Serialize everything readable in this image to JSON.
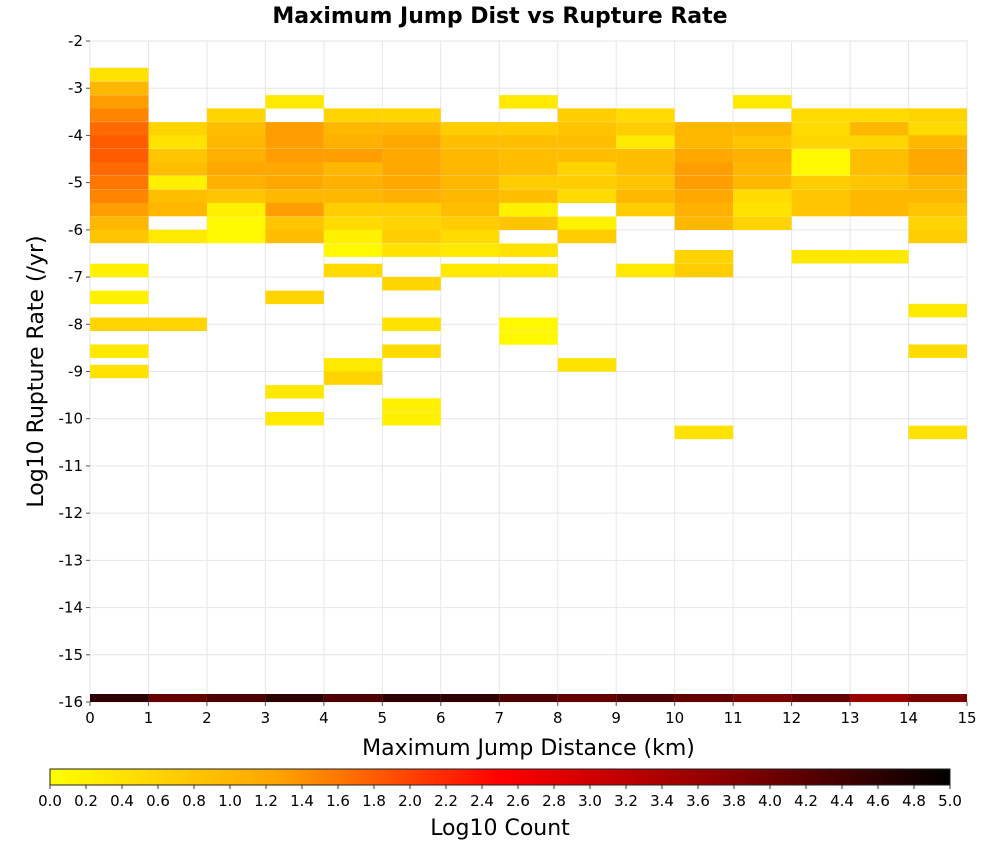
{
  "chart_data": {
    "type": "heatmap",
    "title": "Maximum Jump Dist vs Rupture Rate",
    "xlabel": "Maximum Jump Distance (km)",
    "ylabel": "Log10 Rupture Rate (/yr)",
    "xlim": [
      0,
      15
    ],
    "ylim": [
      -16,
      -2
    ],
    "x_ticks": [
      0,
      1,
      2,
      3,
      4,
      5,
      6,
      7,
      8,
      9,
      10,
      11,
      12,
      13,
      14,
      15
    ],
    "y_ticks": [
      -2,
      -3,
      -4,
      -5,
      -6,
      -7,
      -8,
      -9,
      -10,
      -11,
      -12,
      -13,
      -14,
      -15,
      -16
    ],
    "grid": true,
    "x_bin_width": 1,
    "y_bin_height": 0.2857,
    "colorbar": {
      "label": "Log10 Count",
      "range": [
        0,
        5
      ],
      "ticks": [
        "0.0",
        "0.2",
        "0.4",
        "0.6",
        "0.8",
        "1.0",
        "1.2",
        "1.4",
        "1.6",
        "1.8",
        "2.0",
        "2.2",
        "2.4",
        "2.6",
        "2.8",
        "3.0",
        "3.2",
        "3.4",
        "3.6",
        "3.8",
        "4.0",
        "4.2",
        "4.4",
        "4.6",
        "4.8",
        "5.0"
      ],
      "colors": [
        "#ffff00",
        "#ffa500",
        "#ff0000",
        "#8b0000",
        "#000000"
      ]
    },
    "cells": [
      [
        0,
        -2.71,
        0.4
      ],
      [
        0,
        -3.0,
        1.0
      ],
      [
        0,
        -3.29,
        1.3
      ],
      [
        0,
        -3.57,
        1.5
      ],
      [
        0,
        -3.86,
        1.7
      ],
      [
        0,
        -4.14,
        1.8
      ],
      [
        0,
        -4.43,
        1.8
      ],
      [
        0,
        -4.71,
        1.7
      ],
      [
        0,
        -5.0,
        1.6
      ],
      [
        0,
        -5.29,
        1.5
      ],
      [
        0,
        -5.57,
        1.3
      ],
      [
        0,
        -5.86,
        1.0
      ],
      [
        0,
        -6.14,
        0.8
      ],
      [
        0,
        -6.86,
        0.2
      ],
      [
        0,
        -7.43,
        0.2
      ],
      [
        0,
        -8.0,
        0.6
      ],
      [
        0,
        -8.57,
        0.3
      ],
      [
        0,
        -9.0,
        0.4
      ],
      [
        1,
        -3.86,
        0.6
      ],
      [
        1,
        -4.14,
        0.4
      ],
      [
        1,
        -4.43,
        0.8
      ],
      [
        1,
        -4.71,
        0.9
      ],
      [
        1,
        -5.0,
        0.2
      ],
      [
        1,
        -5.29,
        0.9
      ],
      [
        1,
        -5.57,
        1.0
      ],
      [
        1,
        -6.14,
        0.3
      ],
      [
        1,
        -8.0,
        0.6
      ],
      [
        2,
        -3.57,
        0.6
      ],
      [
        2,
        -3.86,
        0.9
      ],
      [
        2,
        -4.14,
        1.0
      ],
      [
        2,
        -4.43,
        1.1
      ],
      [
        2,
        -4.71,
        1.2
      ],
      [
        2,
        -5.0,
        1.1
      ],
      [
        2,
        -5.29,
        0.8
      ],
      [
        2,
        -5.57,
        0.2
      ],
      [
        2,
        -5.86,
        0.1
      ],
      [
        2,
        -6.14,
        0.1
      ],
      [
        3,
        -3.29,
        0.3
      ],
      [
        3,
        -3.86,
        1.3
      ],
      [
        3,
        -4.14,
        1.3
      ],
      [
        3,
        -4.43,
        1.3
      ],
      [
        3,
        -4.71,
        1.2
      ],
      [
        3,
        -5.0,
        1.2
      ],
      [
        3,
        -5.29,
        1.0
      ],
      [
        3,
        -5.57,
        1.3
      ],
      [
        3,
        -5.86,
        0.8
      ],
      [
        3,
        -6.14,
        0.9
      ],
      [
        3,
        -7.43,
        0.6
      ],
      [
        3,
        -9.43,
        0.3
      ],
      [
        3,
        -10.0,
        0.3
      ],
      [
        4,
        -3.57,
        0.6
      ],
      [
        4,
        -3.86,
        1.0
      ],
      [
        4,
        -4.14,
        1.1
      ],
      [
        4,
        -4.43,
        1.3
      ],
      [
        4,
        -4.71,
        1.0
      ],
      [
        4,
        -5.0,
        1.1
      ],
      [
        4,
        -5.29,
        1.0
      ],
      [
        4,
        -5.57,
        0.7
      ],
      [
        4,
        -5.86,
        0.5
      ],
      [
        4,
        -6.14,
        0.2
      ],
      [
        4,
        -6.43,
        0.1
      ],
      [
        4,
        -6.86,
        0.5
      ],
      [
        4,
        -8.86,
        0.3
      ],
      [
        4,
        -9.14,
        0.6
      ],
      [
        5,
        -3.57,
        0.6
      ],
      [
        5,
        -3.86,
        1.0
      ],
      [
        5,
        -4.14,
        1.2
      ],
      [
        5,
        -4.43,
        1.2
      ],
      [
        5,
        -4.71,
        1.2
      ],
      [
        5,
        -5.0,
        1.2
      ],
      [
        5,
        -5.29,
        1.1
      ],
      [
        5,
        -5.57,
        0.7
      ],
      [
        5,
        -5.86,
        0.6
      ],
      [
        5,
        -6.14,
        0.7
      ],
      [
        5,
        -6.43,
        0.4
      ],
      [
        5,
        -7.14,
        0.6
      ],
      [
        5,
        -8.0,
        0.4
      ],
      [
        5,
        -8.57,
        0.5
      ],
      [
        5,
        -9.71,
        0.2
      ],
      [
        5,
        -10.0,
        0.2
      ],
      [
        6,
        -3.86,
        0.7
      ],
      [
        6,
        -4.14,
        0.9
      ],
      [
        6,
        -4.43,
        1.0
      ],
      [
        6,
        -4.71,
        1.0
      ],
      [
        6,
        -5.0,
        1.0
      ],
      [
        6,
        -5.29,
        1.0
      ],
      [
        6,
        -5.57,
        0.9
      ],
      [
        6,
        -5.86,
        0.7
      ],
      [
        6,
        -6.14,
        0.5
      ],
      [
        6,
        -6.43,
        0.3
      ],
      [
        6,
        -6.86,
        0.3
      ],
      [
        7,
        -3.29,
        0.3
      ],
      [
        7,
        -3.86,
        0.7
      ],
      [
        7,
        -4.14,
        0.9
      ],
      [
        7,
        -4.43,
        0.9
      ],
      [
        7,
        -4.71,
        0.9
      ],
      [
        7,
        -5.0,
        0.7
      ],
      [
        7,
        -5.29,
        0.9
      ],
      [
        7,
        -5.57,
        0.2
      ],
      [
        7,
        -5.86,
        0.8
      ],
      [
        7,
        -6.43,
        0.4
      ],
      [
        7,
        -6.86,
        0.3
      ],
      [
        7,
        -8.0,
        0.1
      ],
      [
        7,
        -8.29,
        0.1
      ],
      [
        8,
        -3.57,
        0.7
      ],
      [
        8,
        -3.86,
        0.8
      ],
      [
        8,
        -4.14,
        0.9
      ],
      [
        8,
        -4.43,
        0.9
      ],
      [
        8,
        -4.71,
        0.6
      ],
      [
        8,
        -5.0,
        0.7
      ],
      [
        8,
        -5.29,
        0.5
      ],
      [
        8,
        -5.86,
        0.2
      ],
      [
        8,
        -6.14,
        0.7
      ],
      [
        8,
        -8.86,
        0.4
      ],
      [
        9,
        -3.57,
        0.5
      ],
      [
        9,
        -3.86,
        0.7
      ],
      [
        9,
        -4.14,
        0.3
      ],
      [
        9,
        -4.43,
        0.9
      ],
      [
        9,
        -4.71,
        0.9
      ],
      [
        9,
        -5.0,
        0.8
      ],
      [
        9,
        -5.29,
        1.0
      ],
      [
        9,
        -5.57,
        0.7
      ],
      [
        9,
        -6.86,
        0.3
      ],
      [
        10,
        -3.86,
        1.0
      ],
      [
        10,
        -4.14,
        1.0
      ],
      [
        10,
        -4.43,
        1.2
      ],
      [
        10,
        -4.71,
        1.3
      ],
      [
        10,
        -5.0,
        1.3
      ],
      [
        10,
        -5.29,
        1.2
      ],
      [
        10,
        -5.57,
        1.1
      ],
      [
        10,
        -5.86,
        1.0
      ],
      [
        10,
        -6.57,
        0.6
      ],
      [
        10,
        -6.86,
        0.7
      ],
      [
        10,
        -10.29,
        0.4
      ],
      [
        11,
        -3.29,
        0.3
      ],
      [
        11,
        -3.86,
        1.0
      ],
      [
        11,
        -4.14,
        0.8
      ],
      [
        11,
        -4.43,
        1.1
      ],
      [
        11,
        -4.71,
        1.0
      ],
      [
        11,
        -5.0,
        1.0
      ],
      [
        11,
        -5.29,
        0.5
      ],
      [
        11,
        -5.57,
        0.4
      ],
      [
        11,
        -5.86,
        0.6
      ],
      [
        12,
        -3.57,
        0.5
      ],
      [
        12,
        -3.86,
        0.5
      ],
      [
        12,
        -4.14,
        0.6
      ],
      [
        12,
        -4.43,
        0.1
      ],
      [
        12,
        -4.71,
        0.1
      ],
      [
        12,
        -5.0,
        0.7
      ],
      [
        12,
        -5.29,
        0.8
      ],
      [
        12,
        -5.57,
        0.8
      ],
      [
        12,
        -6.57,
        0.3
      ],
      [
        13,
        -3.57,
        0.5
      ],
      [
        13,
        -3.86,
        1.0
      ],
      [
        13,
        -4.14,
        0.6
      ],
      [
        13,
        -4.43,
        0.9
      ],
      [
        13,
        -4.71,
        0.9
      ],
      [
        13,
        -5.0,
        0.8
      ],
      [
        13,
        -5.29,
        1.0
      ],
      [
        13,
        -5.57,
        1.0
      ],
      [
        13,
        -6.57,
        0.3
      ],
      [
        14,
        -3.57,
        0.6
      ],
      [
        14,
        -3.86,
        0.5
      ],
      [
        14,
        -4.14,
        1.0
      ],
      [
        14,
        -4.43,
        1.2
      ],
      [
        14,
        -4.71,
        1.2
      ],
      [
        14,
        -5.0,
        1.0
      ],
      [
        14,
        -5.29,
        1.0
      ],
      [
        14,
        -5.57,
        0.8
      ],
      [
        14,
        -5.86,
        0.6
      ],
      [
        14,
        -6.14,
        0.7
      ],
      [
        14,
        -7.71,
        0.3
      ],
      [
        14,
        -8.57,
        0.5
      ],
      [
        14,
        -10.29,
        0.4
      ]
    ],
    "bottom_band": {
      "y": -16.0,
      "values": [
        4.6,
        4.1,
        4.3,
        4.6,
        4.3,
        4.6,
        4.6,
        4.3,
        4.1,
        4.3,
        4.1,
        3.9,
        4.1,
        3.6,
        3.9
      ]
    }
  }
}
